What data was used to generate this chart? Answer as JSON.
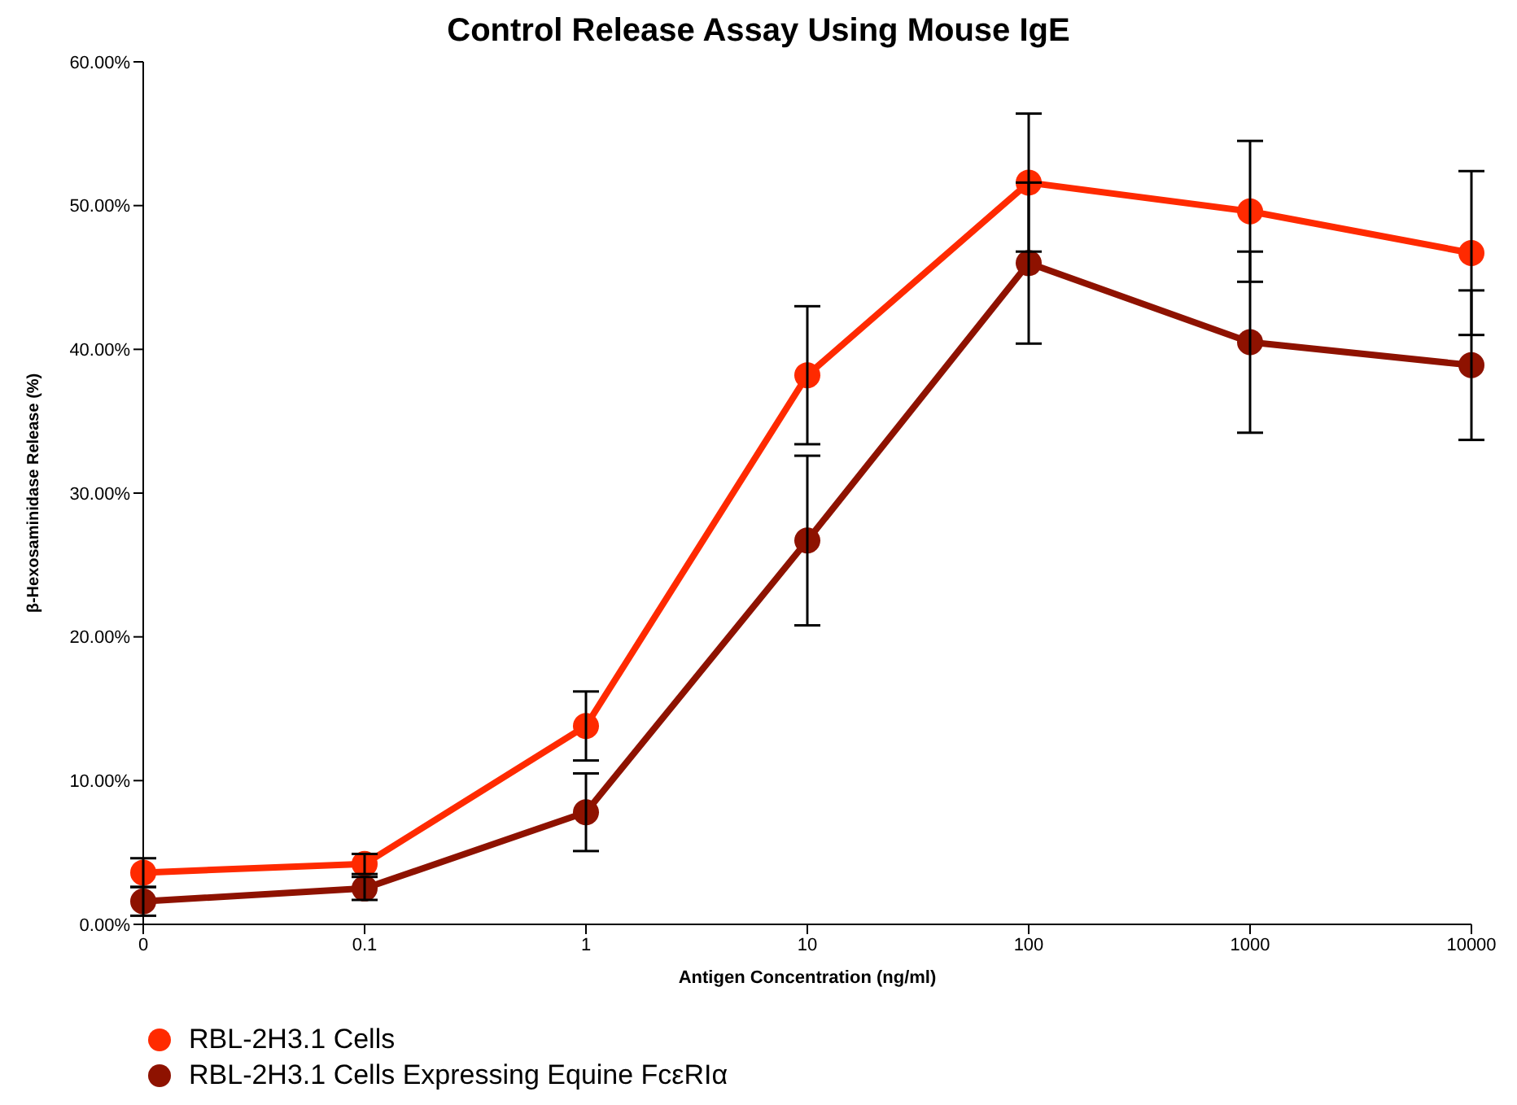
{
  "chart_data": {
    "type": "line",
    "title": "Control Release Assay Using Mouse IgE",
    "xlabel": "Antigen Concentration (ng/ml)",
    "ylabel": "β-Hexosaminidase Release (%)",
    "categories": [
      "0",
      "0.1",
      "1",
      "10",
      "100",
      "1000",
      "10000"
    ],
    "series": [
      {
        "name": "RBL-2H3.1 Cells",
        "color": "#ff2a00",
        "values": [
          3.6,
          4.2,
          13.8,
          38.2,
          51.6,
          49.6,
          46.7
        ],
        "errors": [
          1.0,
          0.7,
          2.4,
          4.8,
          4.8,
          4.9,
          5.7
        ]
      },
      {
        "name": "RBL-2H3.1 Cells Expressing Equine FcεRIα",
        "color": "#8e1200",
        "values": [
          1.6,
          2.5,
          7.8,
          26.7,
          46.0,
          40.5,
          38.9
        ],
        "errors": [
          1.0,
          0.8,
          2.7,
          5.9,
          5.6,
          6.3,
          5.2
        ]
      }
    ],
    "ylim": [
      0,
      60
    ],
    "yticks": [
      {
        "value": 0,
        "label": "0.00%"
      },
      {
        "value": 10,
        "label": "10.00%"
      },
      {
        "value": 20,
        "label": "20.00%"
      },
      {
        "value": 30,
        "label": "30.00%"
      },
      {
        "value": 40,
        "label": "40.00%"
      },
      {
        "value": 50,
        "label": "50.00%"
      },
      {
        "value": 60,
        "label": "60.00%"
      }
    ],
    "grid": false,
    "legend": "bottom left",
    "marker": "circle",
    "line_style": "solid"
  }
}
